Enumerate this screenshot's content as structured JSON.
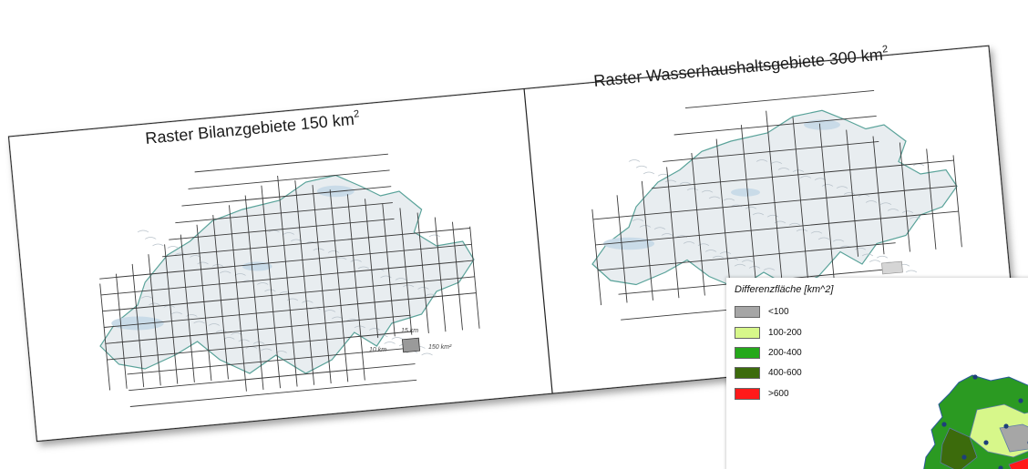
{
  "panels": [
    {
      "title": "Raster Bilanzgebiete 150 km",
      "title_sup": "2",
      "scale_labels": [
        "10 km",
        "15 km",
        "150 km²"
      ]
    },
    {
      "title": "Raster Wasserhaushaltsgebiete 300 km",
      "title_sup": "2"
    }
  ],
  "legend": {
    "title": "Differenzfläche [km^2]",
    "items": [
      {
        "label": "<100",
        "color": "#a6a6a6"
      },
      {
        "label": "100-200",
        "color": "#d7f78a"
      },
      {
        "label": "200-400",
        "color": "#25a81a"
      },
      {
        "label": "400-600",
        "color": "#3c6b0c"
      },
      {
        "label": ">600",
        "color": "#ff1a1a"
      }
    ]
  },
  "colors": {
    "grid": "#3a3a3a",
    "map_fill": "#e8edf0",
    "map_outline": "#5aa39a",
    "lake": "#c9dbe8"
  }
}
